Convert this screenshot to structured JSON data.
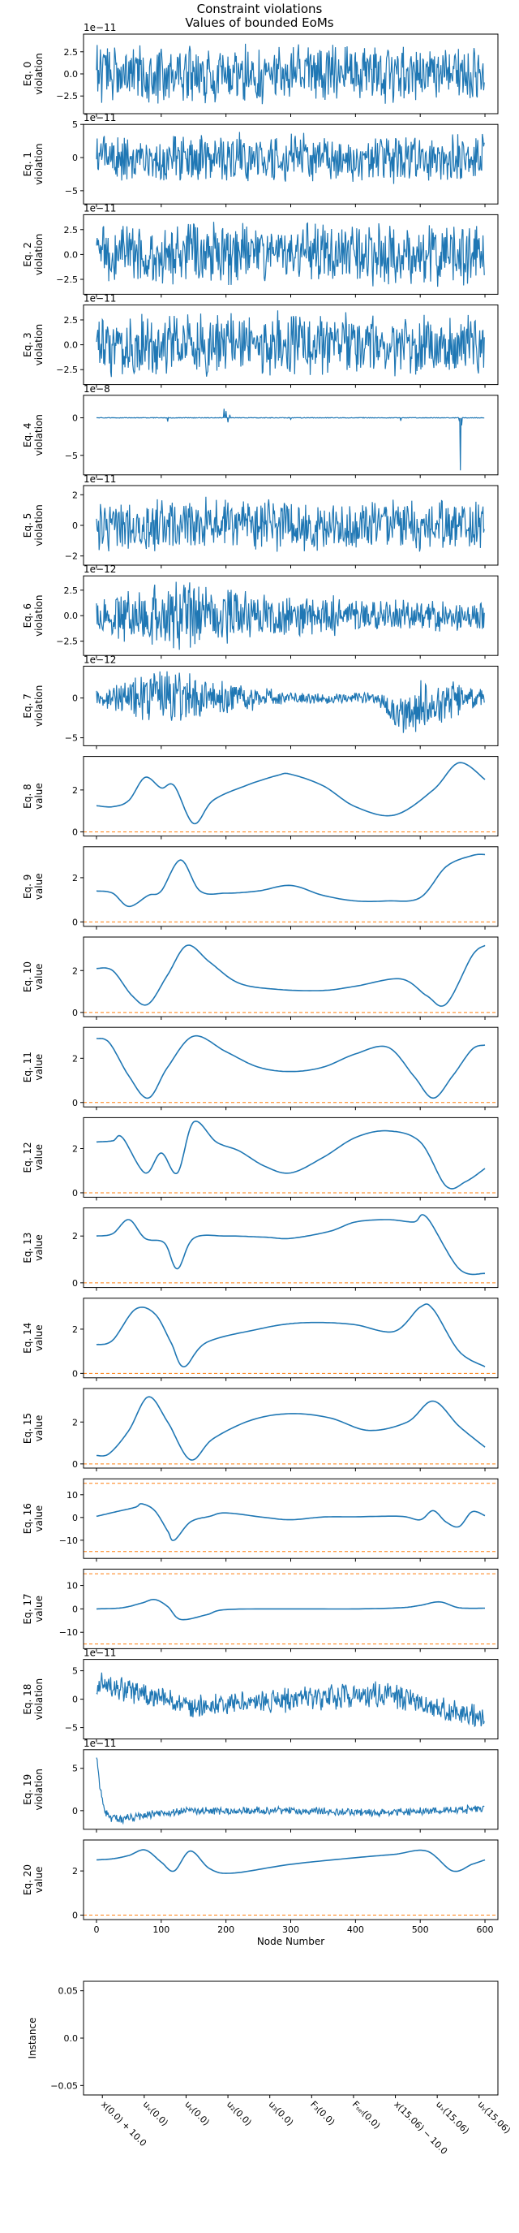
{
  "figure": {
    "title": "Constraint violations",
    "subtitle": "Values of bounded EoMs",
    "xlabel": "Node Number",
    "instance_ylabel": "Instance"
  },
  "colors": {
    "series": "#1f77b4",
    "bound": "#ff7f0e",
    "axis": "#000000"
  },
  "chart_data": [
    {
      "type": "line",
      "ylabel": "Eq. 0\nviolation",
      "scale_label": "1e−11",
      "yticks": [
        2.5,
        0.0,
        -2.5
      ],
      "ylim": [
        -4.5,
        4.5
      ],
      "xlim": [
        -20,
        620
      ],
      "xticks": [
        0,
        100,
        200,
        300,
        400,
        500,
        600
      ],
      "generated": {
        "kind": "noise",
        "n": 600,
        "amp": 2.6,
        "seed": 1
      }
    },
    {
      "type": "line",
      "ylabel": "Eq. 1\nviolation",
      "scale_label": "1e−11",
      "yticks": [
        5,
        0,
        -5
      ],
      "ylim": [
        -7,
        5
      ],
      "xlim": [
        -20,
        620
      ],
      "xticks": [
        0,
        100,
        200,
        300,
        400,
        500,
        600
      ],
      "generated": {
        "kind": "noise",
        "n": 600,
        "amp": 3.0,
        "seed": 2
      }
    },
    {
      "type": "line",
      "ylabel": "Eq. 2\nviolation",
      "scale_label": "1e−11",
      "yticks": [
        2.5,
        0.0,
        -2.5
      ],
      "ylim": [
        -4,
        4
      ],
      "xlim": [
        -20,
        620
      ],
      "xticks": [
        0,
        100,
        200,
        300,
        400,
        500,
        600
      ],
      "generated": {
        "kind": "noise",
        "n": 600,
        "amp": 2.5,
        "seed": 3
      }
    },
    {
      "type": "line",
      "ylabel": "Eq. 3\nviolation",
      "scale_label": "1e−11",
      "yticks": [
        2.5,
        0.0,
        -2.5
      ],
      "ylim": [
        -4,
        4
      ],
      "xlim": [
        -20,
        620
      ],
      "xticks": [
        0,
        100,
        200,
        300,
        400,
        500,
        600
      ],
      "generated": {
        "kind": "noise",
        "n": 600,
        "amp": 2.6,
        "seed": 4
      }
    },
    {
      "type": "line",
      "ylabel": "Eq. 4\nviolation",
      "scale_label": "1e−8",
      "yticks": [
        0,
        -5
      ],
      "ylim": [
        -7.6,
        3.0
      ],
      "xlim": [
        -20,
        620
      ],
      "xticks": [
        0,
        100,
        200,
        300,
        400,
        500,
        600
      ],
      "generated": {
        "kind": "flat",
        "n": 600,
        "seed": 5
      },
      "spikes": [
        [
          110,
          -0.5
        ],
        [
          197,
          1.2
        ],
        [
          200,
          0.9
        ],
        [
          203,
          -0.6
        ],
        [
          206,
          0.4
        ],
        [
          300,
          -0.2
        ],
        [
          470,
          -0.4
        ],
        [
          560,
          -0.3
        ],
        [
          562,
          -7.0
        ],
        [
          564,
          -1.0
        ]
      ]
    },
    {
      "type": "line",
      "ylabel": "Eq. 5\nviolation",
      "scale_label": "1e−11",
      "yticks": [
        2,
        0,
        -2
      ],
      "ylim": [
        -2.6,
        2.6
      ],
      "xlim": [
        -20,
        620
      ],
      "xticks": [
        0,
        100,
        200,
        300,
        400,
        500,
        600
      ],
      "generated": {
        "kind": "noise",
        "n": 600,
        "amp": 1.4,
        "seed": 6
      }
    },
    {
      "type": "line",
      "ylabel": "Eq. 6\nviolation",
      "scale_label": "1e−12",
      "yticks": [
        2.5,
        0.0,
        -2.5
      ],
      "ylim": [
        -3.9,
        3.9
      ],
      "xlim": [
        -20,
        620
      ],
      "xticks": [
        0,
        100,
        200,
        300,
        400,
        500,
        600
      ],
      "generated": {
        "kind": "noise",
        "n": 600,
        "amp": 1.6,
        "seed": 7,
        "envelope": [
          [
            0,
            1.0
          ],
          [
            100,
            1.6
          ],
          [
            140,
            1.8
          ],
          [
            250,
            1.1
          ],
          [
            400,
            0.9
          ],
          [
            600,
            0.7
          ]
        ]
      }
    },
    {
      "type": "line",
      "ylabel": "Eq. 7\nviolation",
      "scale_label": "1e−12",
      "yticks": [
        0,
        -5
      ],
      "ylim": [
        -6,
        4
      ],
      "xlim": [
        -20,
        620
      ],
      "xticks": [
        0,
        100,
        200,
        300,
        400,
        500,
        600
      ],
      "generated": {
        "kind": "noise",
        "n": 600,
        "amp": 1.5,
        "seed": 8,
        "envelope": [
          [
            0,
            0.5
          ],
          [
            100,
            2.0
          ],
          [
            200,
            1.2
          ],
          [
            300,
            0.4
          ],
          [
            430,
            0.4
          ],
          [
            500,
            2.0
          ],
          [
            600,
            0.6
          ]
        ],
        "trend": [
          [
            0,
            0
          ],
          [
            430,
            0
          ],
          [
            470,
            -2.2
          ],
          [
            500,
            -1.5
          ],
          [
            560,
            0
          ],
          [
            600,
            0
          ]
        ]
      }
    },
    {
      "type": "line",
      "ylabel": "Eq. 8\nvalue",
      "yticks": [
        0,
        2
      ],
      "ylim": [
        -0.2,
        3.6
      ],
      "xlim": [
        -20,
        620
      ],
      "xticks": [
        0,
        100,
        200,
        300,
        400,
        500,
        600
      ],
      "bounds": [
        0
      ],
      "x": [
        0,
        25,
        50,
        75,
        100,
        120,
        150,
        180,
        230,
        280,
        300,
        350,
        400,
        460,
        520,
        560,
        600
      ],
      "y": [
        1.25,
        1.2,
        1.5,
        2.6,
        2.1,
        2.2,
        0.4,
        1.5,
        2.2,
        2.7,
        2.75,
        2.2,
        1.2,
        0.8,
        2.0,
        3.3,
        2.5
      ]
    },
    {
      "type": "line",
      "ylabel": "Eq. 9\nvalue",
      "yticks": [
        0,
        2
      ],
      "ylim": [
        -0.2,
        3.4
      ],
      "xlim": [
        -20,
        620
      ],
      "xticks": [
        0,
        100,
        200,
        300,
        400,
        500,
        600
      ],
      "bounds": [
        0
      ],
      "x": [
        0,
        25,
        50,
        80,
        100,
        130,
        160,
        200,
        250,
        300,
        350,
        400,
        450,
        500,
        540,
        580,
        600
      ],
      "y": [
        1.4,
        1.3,
        0.7,
        1.2,
        1.4,
        2.8,
        1.4,
        1.3,
        1.4,
        1.65,
        1.2,
        0.95,
        0.95,
        1.1,
        2.5,
        3.0,
        3.05
      ]
    },
    {
      "type": "line",
      "ylabel": "Eq. 10\nvalue",
      "yticks": [
        0,
        2
      ],
      "ylim": [
        -0.2,
        3.6
      ],
      "xlim": [
        -20,
        620
      ],
      "xticks": [
        0,
        100,
        200,
        300,
        400,
        500,
        600
      ],
      "bounds": [
        0
      ],
      "x": [
        0,
        25,
        55,
        80,
        110,
        140,
        175,
        220,
        280,
        350,
        400,
        470,
        510,
        540,
        580,
        600
      ],
      "y": [
        2.1,
        2.0,
        0.8,
        0.4,
        1.8,
        3.2,
        2.4,
        1.4,
        1.1,
        1.05,
        1.25,
        1.6,
        0.8,
        0.4,
        2.7,
        3.2
      ]
    },
    {
      "type": "line",
      "ylabel": "Eq. 11\nvalue",
      "yticks": [
        0,
        2
      ],
      "ylim": [
        -0.2,
        3.4
      ],
      "xlim": [
        -20,
        620
      ],
      "xticks": [
        0,
        100,
        200,
        300,
        400,
        500,
        600
      ],
      "bounds": [
        0
      ],
      "x": [
        0,
        20,
        50,
        80,
        110,
        150,
        200,
        250,
        300,
        350,
        400,
        450,
        490,
        520,
        550,
        580,
        600
      ],
      "y": [
        2.9,
        2.7,
        1.2,
        0.2,
        1.6,
        3.0,
        2.3,
        1.6,
        1.4,
        1.6,
        2.2,
        2.5,
        1.2,
        0.2,
        1.2,
        2.4,
        2.6
      ]
    },
    {
      "type": "line",
      "ylabel": "Eq. 12\nvalue",
      "yticks": [
        0,
        2
      ],
      "ylim": [
        -0.2,
        3.4
      ],
      "xlim": [
        -20,
        620
      ],
      "xticks": [
        0,
        100,
        200,
        300,
        400,
        500,
        600
      ],
      "bounds": [
        0
      ],
      "x": [
        0,
        25,
        40,
        75,
        100,
        125,
        150,
        185,
        220,
        260,
        300,
        350,
        400,
        450,
        500,
        540,
        570,
        600
      ],
      "y": [
        2.3,
        2.35,
        2.5,
        0.9,
        1.8,
        0.9,
        3.2,
        2.3,
        1.9,
        1.2,
        0.9,
        1.6,
        2.5,
        2.8,
        2.3,
        0.3,
        0.5,
        1.1
      ]
    },
    {
      "type": "line",
      "ylabel": "Eq. 13\nvalue",
      "yticks": [
        0,
        2
      ],
      "ylim": [
        -0.2,
        3.2
      ],
      "xlim": [
        -20,
        620
      ],
      "xticks": [
        0,
        100,
        200,
        300,
        400,
        500,
        600
      ],
      "bounds": [
        0
      ],
      "x": [
        0,
        25,
        50,
        75,
        105,
        125,
        150,
        200,
        260,
        300,
        360,
        400,
        450,
        490,
        510,
        560,
        600
      ],
      "y": [
        2.0,
        2.1,
        2.7,
        1.9,
        1.7,
        0.6,
        1.9,
        2.0,
        1.95,
        1.9,
        2.2,
        2.6,
        2.7,
        2.6,
        2.8,
        0.6,
        0.4
      ]
    },
    {
      "type": "line",
      "ylabel": "Eq. 14\nvalue",
      "yticks": [
        0,
        2
      ],
      "ylim": [
        -0.2,
        3.4
      ],
      "xlim": [
        -20,
        620
      ],
      "xticks": [
        0,
        100,
        200,
        300,
        400,
        500,
        600
      ],
      "bounds": [
        0
      ],
      "x": [
        0,
        25,
        60,
        90,
        115,
        135,
        170,
        250,
        300,
        350,
        400,
        460,
        500,
        520,
        560,
        600
      ],
      "y": [
        1.3,
        1.5,
        2.9,
        2.7,
        1.4,
        0.3,
        1.4,
        2.0,
        2.25,
        2.3,
        2.2,
        1.9,
        3.0,
        2.9,
        1.0,
        0.3
      ]
    },
    {
      "type": "line",
      "ylabel": "Eq. 15\nvalue",
      "yticks": [
        0,
        2
      ],
      "ylim": [
        -0.2,
        3.6
      ],
      "xlim": [
        -20,
        620
      ],
      "xticks": [
        0,
        100,
        200,
        300,
        400,
        500,
        600
      ],
      "bounds": [
        0
      ],
      "x": [
        0,
        20,
        50,
        80,
        110,
        145,
        180,
        240,
        300,
        360,
        420,
        480,
        520,
        560,
        600
      ],
      "y": [
        0.4,
        0.5,
        1.6,
        3.2,
        2.0,
        0.2,
        1.2,
        2.1,
        2.4,
        2.2,
        1.6,
        2.0,
        3.0,
        1.8,
        0.8
      ]
    },
    {
      "type": "line",
      "ylabel": "Eq. 16\nvalue",
      "yticks": [
        10,
        0,
        -10
      ],
      "ylim": [
        -18,
        17
      ],
      "xlim": [
        -20,
        620
      ],
      "xticks": [
        0,
        100,
        200,
        300,
        400,
        500,
        600
      ],
      "bounds": [
        15,
        -15
      ],
      "x": [
        0,
        30,
        60,
        70,
        90,
        110,
        120,
        145,
        175,
        200,
        260,
        300,
        350,
        400,
        470,
        500,
        520,
        540,
        560,
        580,
        600
      ],
      "y": [
        0.5,
        2.5,
        4.5,
        6.0,
        3.0,
        -6.0,
        -10.0,
        -2.0,
        0.5,
        2.0,
        0.0,
        -1.0,
        0.2,
        0.3,
        0.5,
        -1.0,
        3.0,
        -2.0,
        -4.0,
        2.5,
        0.8
      ]
    },
    {
      "type": "line",
      "ylabel": "Eq. 17\nvalue",
      "yticks": [
        10,
        0,
        -10
      ],
      "ylim": [
        -17,
        17
      ],
      "xlim": [
        -20,
        620
      ],
      "xticks": [
        0,
        100,
        200,
        300,
        400,
        500,
        600
      ],
      "bounds": [
        15,
        -15
      ],
      "x": [
        0,
        40,
        70,
        90,
        110,
        130,
        170,
        200,
        300,
        400,
        470,
        500,
        530,
        560,
        600
      ],
      "y": [
        0.0,
        0.5,
        2.5,
        4.0,
        1.0,
        -4.5,
        -2.5,
        -0.3,
        0.0,
        0.0,
        0.5,
        1.5,
        3.0,
        0.5,
        0.3
      ]
    },
    {
      "type": "line",
      "ylabel": "Eq. 18\nviolation",
      "scale_label": "1e−11",
      "yticks": [
        5,
        0,
        -5
      ],
      "ylim": [
        -7,
        7
      ],
      "xlim": [
        -20,
        620
      ],
      "xticks": [
        0,
        100,
        200,
        300,
        400,
        500,
        600
      ],
      "generated": {
        "kind": "noise",
        "n": 600,
        "amp": 1.8,
        "seed": 9,
        "trend": [
          [
            0,
            3.0
          ],
          [
            80,
            0.5
          ],
          [
            150,
            -1.5
          ],
          [
            300,
            0
          ],
          [
            450,
            1.0
          ],
          [
            500,
            -1.0
          ],
          [
            600,
            -3.5
          ]
        ]
      }
    },
    {
      "type": "line",
      "ylabel": "Eq. 19\nviolation",
      "scale_label": "1e−11",
      "yticks": [
        5,
        0
      ],
      "ylim": [
        -2.2,
        7.2
      ],
      "xlim": [
        -20,
        620
      ],
      "xticks": [
        0,
        100,
        200,
        300,
        400,
        500,
        600
      ],
      "generated": {
        "kind": "noise",
        "n": 600,
        "amp": 0.4,
        "seed": 10,
        "trend": [
          [
            0,
            6.5
          ],
          [
            5,
            3.0
          ],
          [
            12,
            0.2
          ],
          [
            20,
            -0.8
          ],
          [
            40,
            -1.0
          ],
          [
            80,
            -0.5
          ],
          [
            150,
            0
          ],
          [
            300,
            0
          ],
          [
            450,
            -0.2
          ],
          [
            600,
            0.2
          ]
        ]
      }
    },
    {
      "type": "line",
      "ylabel": "Eq. 20\nvalue",
      "yticks": [
        0,
        2
      ],
      "ylim": [
        -0.2,
        3.4
      ],
      "xlim": [
        -20,
        620
      ],
      "xticks": [
        0,
        100,
        200,
        300,
        400,
        500,
        600
      ],
      "bounds": [
        0
      ],
      "x": [
        0,
        25,
        50,
        75,
        100,
        120,
        145,
        175,
        210,
        300,
        400,
        460,
        510,
        550,
        580,
        600
      ],
      "y": [
        2.5,
        2.55,
        2.7,
        2.95,
        2.4,
        2.0,
        2.9,
        2.1,
        1.9,
        2.3,
        2.6,
        2.75,
        2.9,
        2.0,
        2.3,
        2.5
      ]
    },
    {
      "type": "scatter",
      "ylabel": "Instance",
      "yticks": [
        0.05,
        0.0,
        -0.05
      ],
      "ylim": [
        -0.06,
        0.06
      ],
      "xlim": [
        -0.45,
        9.45
      ],
      "xtick_labels": [
        "x(0.0) + 10.0",
        "uₓ(0.0)",
        "uᵧ(0.0)",
        "u₂(0.0)",
        "u₃(0.0)",
        "F₃(0.0)",
        "Fₛₑₗ(0.0)",
        "x(15.06) − 10.0",
        "uₓ(15.06)",
        "uᵧ(15.06)"
      ],
      "values": []
    }
  ]
}
